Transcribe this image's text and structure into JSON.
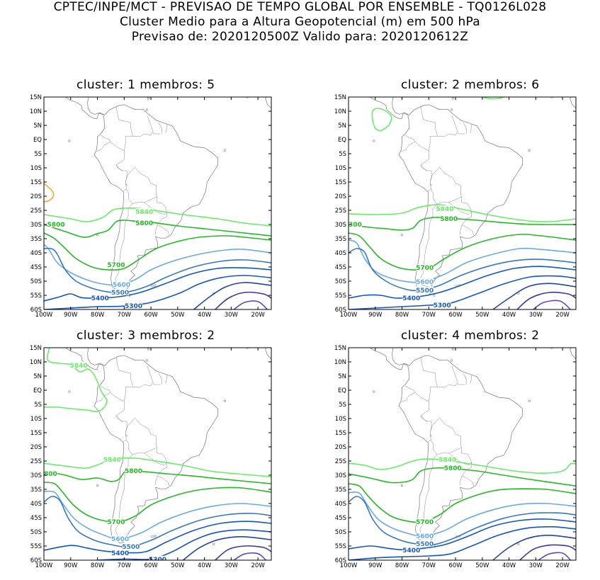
{
  "header": {
    "line1": "CPTEC/INPE/MCT - PREVISAO DE TEMPO GLOBAL POR ENSEMBLE - TQ0126L028",
    "line2": "Cluster Medio para a Altura Geopotencial (m) em 500 hPa",
    "line3": "Previsao de: 2020120500Z   Valido para: 2020120612Z"
  },
  "lat_ticks": [
    "15N",
    "10N",
    "5N",
    "EQ",
    "5S",
    "10S",
    "15S",
    "20S",
    "25S",
    "30S",
    "35S",
    "40S",
    "45S",
    "50S",
    "55S",
    "60S"
  ],
  "lon_ticks": [
    "100W",
    "90W",
    "80W",
    "70W",
    "60W",
    "50W",
    "40W",
    "30W",
    "20W"
  ],
  "panels": [
    {
      "title": "cluster: 1   membros: 5",
      "labels": [
        {
          "text": "5840",
          "lon": -62.5,
          "lat": -25.5,
          "c": "#66ee66"
        },
        {
          "text": "5800",
          "lon": -95.5,
          "lat": -30.0,
          "c": "#22bb22"
        },
        {
          "text": "5800",
          "lon": -62.5,
          "lat": -29.5,
          "c": "#22bb22"
        },
        {
          "text": "5700",
          "lon": -73.0,
          "lat": -44.3,
          "c": "#22bb22"
        },
        {
          "text": "5600",
          "lon": -71.0,
          "lat": -51.3,
          "c": "#66aaee"
        },
        {
          "text": "5500",
          "lon": -71.5,
          "lat": -54.0,
          "c": "#3377cc"
        },
        {
          "text": "5400",
          "lon": -79.0,
          "lat": -56.0,
          "c": "#1155cc"
        },
        {
          "text": "5300",
          "lon": -66.5,
          "lat": -58.8,
          "c": "#1155cc"
        }
      ]
    },
    {
      "title": "cluster: 2   membros: 6",
      "labels": [
        {
          "text": "5840",
          "lon": -64.0,
          "lat": -24.5,
          "c": "#66ee66"
        },
        {
          "text": "300",
          "lon": -97.5,
          "lat": -30.0,
          "c": "#22bb22"
        },
        {
          "text": "5800",
          "lon": -62.5,
          "lat": -28.0,
          "c": "#22bb22"
        },
        {
          "text": "5700",
          "lon": -71.5,
          "lat": -45.3,
          "c": "#22bb22"
        },
        {
          "text": "5600",
          "lon": -71.5,
          "lat": -50.2,
          "c": "#66aaee"
        },
        {
          "text": "5500",
          "lon": -71.5,
          "lat": -53.2,
          "c": "#3377cc"
        },
        {
          "text": "5400",
          "lon": -76.5,
          "lat": -56.0,
          "c": "#1155cc"
        },
        {
          "text": "5300",
          "lon": -65.0,
          "lat": -58.5,
          "c": "#1155cc"
        }
      ]
    },
    {
      "title": "cluster: 3   membros: 2",
      "labels": [
        {
          "text": "5840",
          "lon": -87.0,
          "lat": 8.8,
          "c": "#66ee66"
        },
        {
          "text": "5840",
          "lon": -74.5,
          "lat": -24.5,
          "c": "#66ee66"
        },
        {
          "text": "800",
          "lon": -97.5,
          "lat": -29.5,
          "c": "#22bb22"
        },
        {
          "text": "5800",
          "lon": -66.5,
          "lat": -28.5,
          "c": "#22bb22"
        },
        {
          "text": "5700",
          "lon": -73.0,
          "lat": -46.5,
          "c": "#22bb22"
        },
        {
          "text": "5600",
          "lon": -71.5,
          "lat": -52.5,
          "c": "#66aaee"
        },
        {
          "text": "5500",
          "lon": -67.5,
          "lat": -55.3,
          "c": "#3377cc"
        },
        {
          "text": "5400",
          "lon": -71.5,
          "lat": -57.5,
          "c": "#1155cc"
        },
        {
          "text": "5300",
          "lon": -57.5,
          "lat": -59.7,
          "c": "#1155cc"
        }
      ]
    },
    {
      "title": "cluster: 4   membros: 2",
      "labels": [
        {
          "text": "5840",
          "lon": -63.0,
          "lat": -24.5,
          "c": "#66ee66"
        },
        {
          "text": "5800",
          "lon": -61.0,
          "lat": -27.5,
          "c": "#22bb22"
        },
        {
          "text": "5700",
          "lon": -71.5,
          "lat": -46.5,
          "c": "#22bb22"
        },
        {
          "text": "5600",
          "lon": -71.5,
          "lat": -51.5,
          "c": "#66aaee"
        },
        {
          "text": "5500",
          "lon": -71.5,
          "lat": -54.2,
          "c": "#3377cc"
        },
        {
          "text": "5400",
          "lon": -76.5,
          "lat": -56.5,
          "c": "#1155cc"
        }
      ]
    }
  ]
}
